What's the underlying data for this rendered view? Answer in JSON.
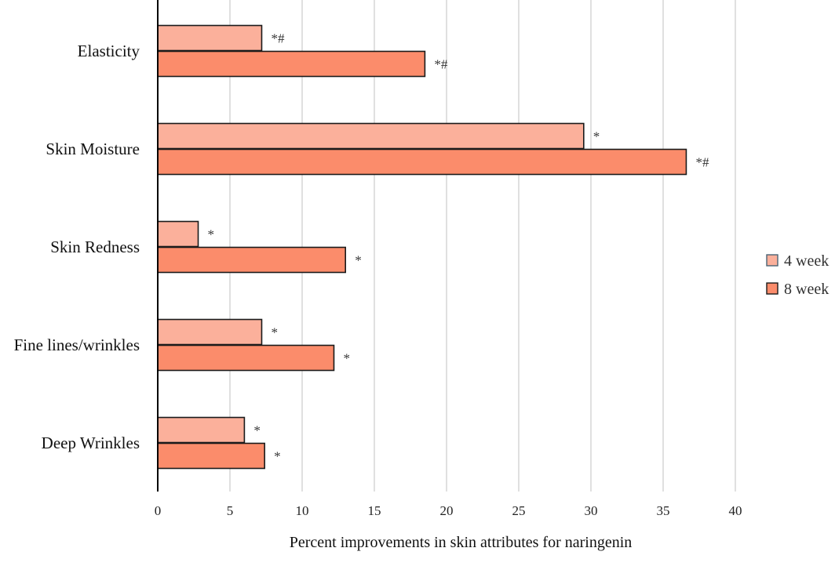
{
  "chart_data": {
    "type": "bar",
    "orientation": "horizontal",
    "categories": [
      "Elasticity",
      "Skin Moisture",
      "Skin Redness",
      "Fine lines/wrinkles",
      "Deep Wrinkles"
    ],
    "series": [
      {
        "name": "4 week",
        "color": "#fbb09b",
        "edge_color": "#4a6474",
        "values": [
          7.2,
          29.5,
          2.8,
          7.2,
          6.0
        ],
        "annotations": [
          "*#",
          "*",
          "*",
          "*",
          "*"
        ]
      },
      {
        "name": "8 week",
        "color": "#fb8c6b",
        "edge_color": "#1a1a1a",
        "values": [
          18.5,
          36.6,
          13.0,
          12.2,
          7.4
        ],
        "annotations": [
          "*#",
          "*#",
          "*",
          "*",
          "*"
        ]
      }
    ],
    "xlabel": "Percent improvements in skin attributes for naringenin",
    "ylabel": "",
    "xlim": [
      0,
      40
    ],
    "xticks": [
      0,
      5,
      10,
      15,
      20,
      25,
      30,
      35,
      40
    ],
    "grid": "vertical",
    "legend": "right"
  }
}
